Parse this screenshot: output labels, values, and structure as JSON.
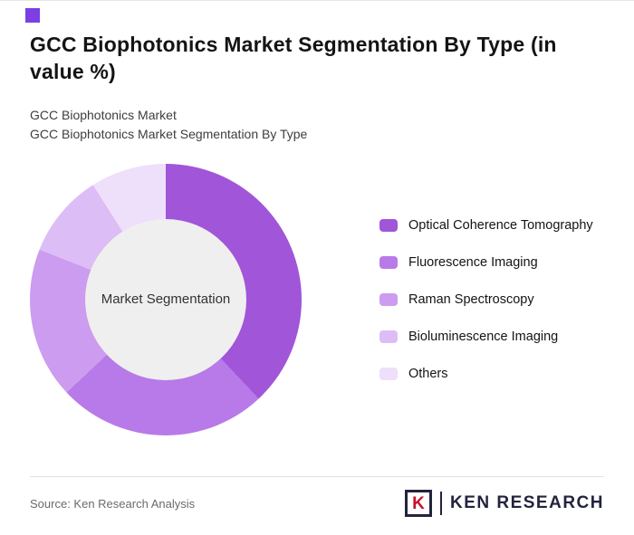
{
  "page": {
    "title": "GCC Biophotonics Market Segmentation By Type (in value %)",
    "subtitle1": "GCC Biophotonics Market",
    "subtitle2": "GCC Biophotonics Market Segmentation By Type"
  },
  "chart_data": {
    "type": "pie",
    "donut": true,
    "title": "GCC Biophotonics Market Segmentation By Type (in value %)",
    "center_label": "Market Segmentation",
    "categories": [
      "Optical Coherence Tomography",
      "Fluorescence Imaging",
      "Raman Spectroscopy",
      "Bioluminescence Imaging",
      "Others"
    ],
    "values": [
      38,
      25,
      18,
      10,
      9
    ],
    "colors": [
      "#a155d8",
      "#b87ae8",
      "#cb9cef",
      "#ddbdf5",
      "#eedffb"
    ],
    "legend_position": "right",
    "start_angle": 0,
    "hole_color": "#efefef"
  },
  "footer": {
    "source": "Source: Ken Research Analysis",
    "logo_letter": "K",
    "logo_text": "KEN RESEARCH"
  },
  "colors": {
    "accent": "#7b3fe4"
  }
}
